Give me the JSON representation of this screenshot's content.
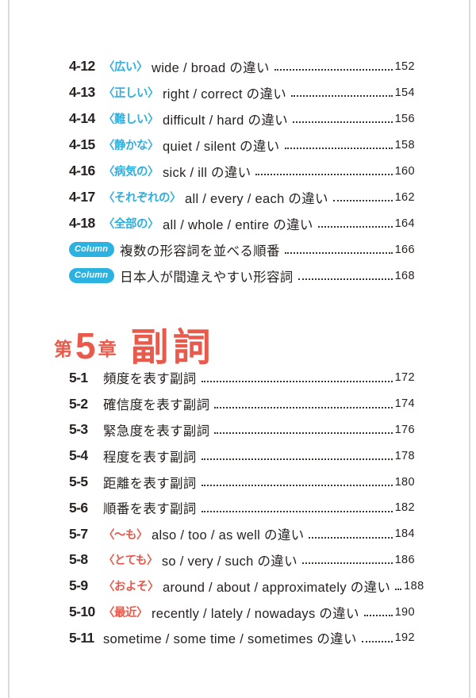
{
  "colors": {
    "blue": "#2fafe0",
    "red": "#e8594b",
    "text": "#272120",
    "badge_bg": "#2bb2e1",
    "badge_text": "#ffffff",
    "heading_red": "#e85a4c"
  },
  "ch4": {
    "items": [
      {
        "num": "4-12",
        "term": "〈広い〉",
        "term_color": "blue",
        "title": "wide / broad の違い",
        "page": "152"
      },
      {
        "num": "4-13",
        "term": "〈正しい〉",
        "term_color": "blue",
        "title": "right / correct の違い",
        "page": "154"
      },
      {
        "num": "4-14",
        "term": "〈難しい〉",
        "term_color": "blue",
        "title": "difficult / hard の違い",
        "page": "156"
      },
      {
        "num": "4-15",
        "term": "〈静かな〉",
        "term_color": "blue",
        "title": "quiet / silent の違い",
        "page": "158"
      },
      {
        "num": "4-16",
        "term": "〈病気の〉",
        "term_color": "blue",
        "title": "sick / ill の違い",
        "page": "160"
      },
      {
        "num": "4-17",
        "term": "〈それぞれの〉",
        "term_color": "blue",
        "title": "all / every / each の違い",
        "page": "162"
      },
      {
        "num": "4-18",
        "term": "〈全部の〉",
        "term_color": "blue",
        "title": "all / whole / entire の違い",
        "page": "164"
      }
    ]
  },
  "columns": {
    "items": [
      {
        "badge": "Column",
        "title": "複数の形容詞を並べる順番",
        "page": "166"
      },
      {
        "badge": "Column",
        "title": "日本人が間違えやすい形容詞",
        "page": "168"
      }
    ]
  },
  "heading": {
    "prefix": "第",
    "number": "5",
    "suffix": "章",
    "title": "副詞"
  },
  "ch5": {
    "items": [
      {
        "num": "5-1",
        "term": "",
        "term_color": "",
        "title": "頻度を表す副詞",
        "page": "172"
      },
      {
        "num": "5-2",
        "term": "",
        "term_color": "",
        "title": "確信度を表す副詞",
        "page": "174"
      },
      {
        "num": "5-3",
        "term": "",
        "term_color": "",
        "title": "緊急度を表す副詞",
        "page": "176"
      },
      {
        "num": "5-4",
        "term": "",
        "term_color": "",
        "title": "程度を表す副詞",
        "page": "178"
      },
      {
        "num": "5-5",
        "term": "",
        "term_color": "",
        "title": "距離を表す副詞",
        "page": "180"
      },
      {
        "num": "5-6",
        "term": "",
        "term_color": "",
        "title": "順番を表す副詞",
        "page": "182"
      },
      {
        "num": "5-7",
        "term": "〈〜も〉",
        "term_color": "red",
        "title": "also /  too / as well の違い",
        "page": "184"
      },
      {
        "num": "5-8",
        "term": "〈とても〉",
        "term_color": "red",
        "title": "so / very / such の違い",
        "page": "186"
      },
      {
        "num": "5-9",
        "term": "〈およそ〉",
        "term_color": "red",
        "title": "around /  about / approximately の違い",
        "page": "188"
      },
      {
        "num": "5-10",
        "term": "〈最近〉",
        "term_color": "red",
        "title": "recently / lately / nowadays の違い",
        "page": "190"
      },
      {
        "num": "5-11",
        "term": "",
        "term_color": "",
        "title": "sometime / some time / sometimes の違い",
        "page": "192"
      }
    ]
  }
}
